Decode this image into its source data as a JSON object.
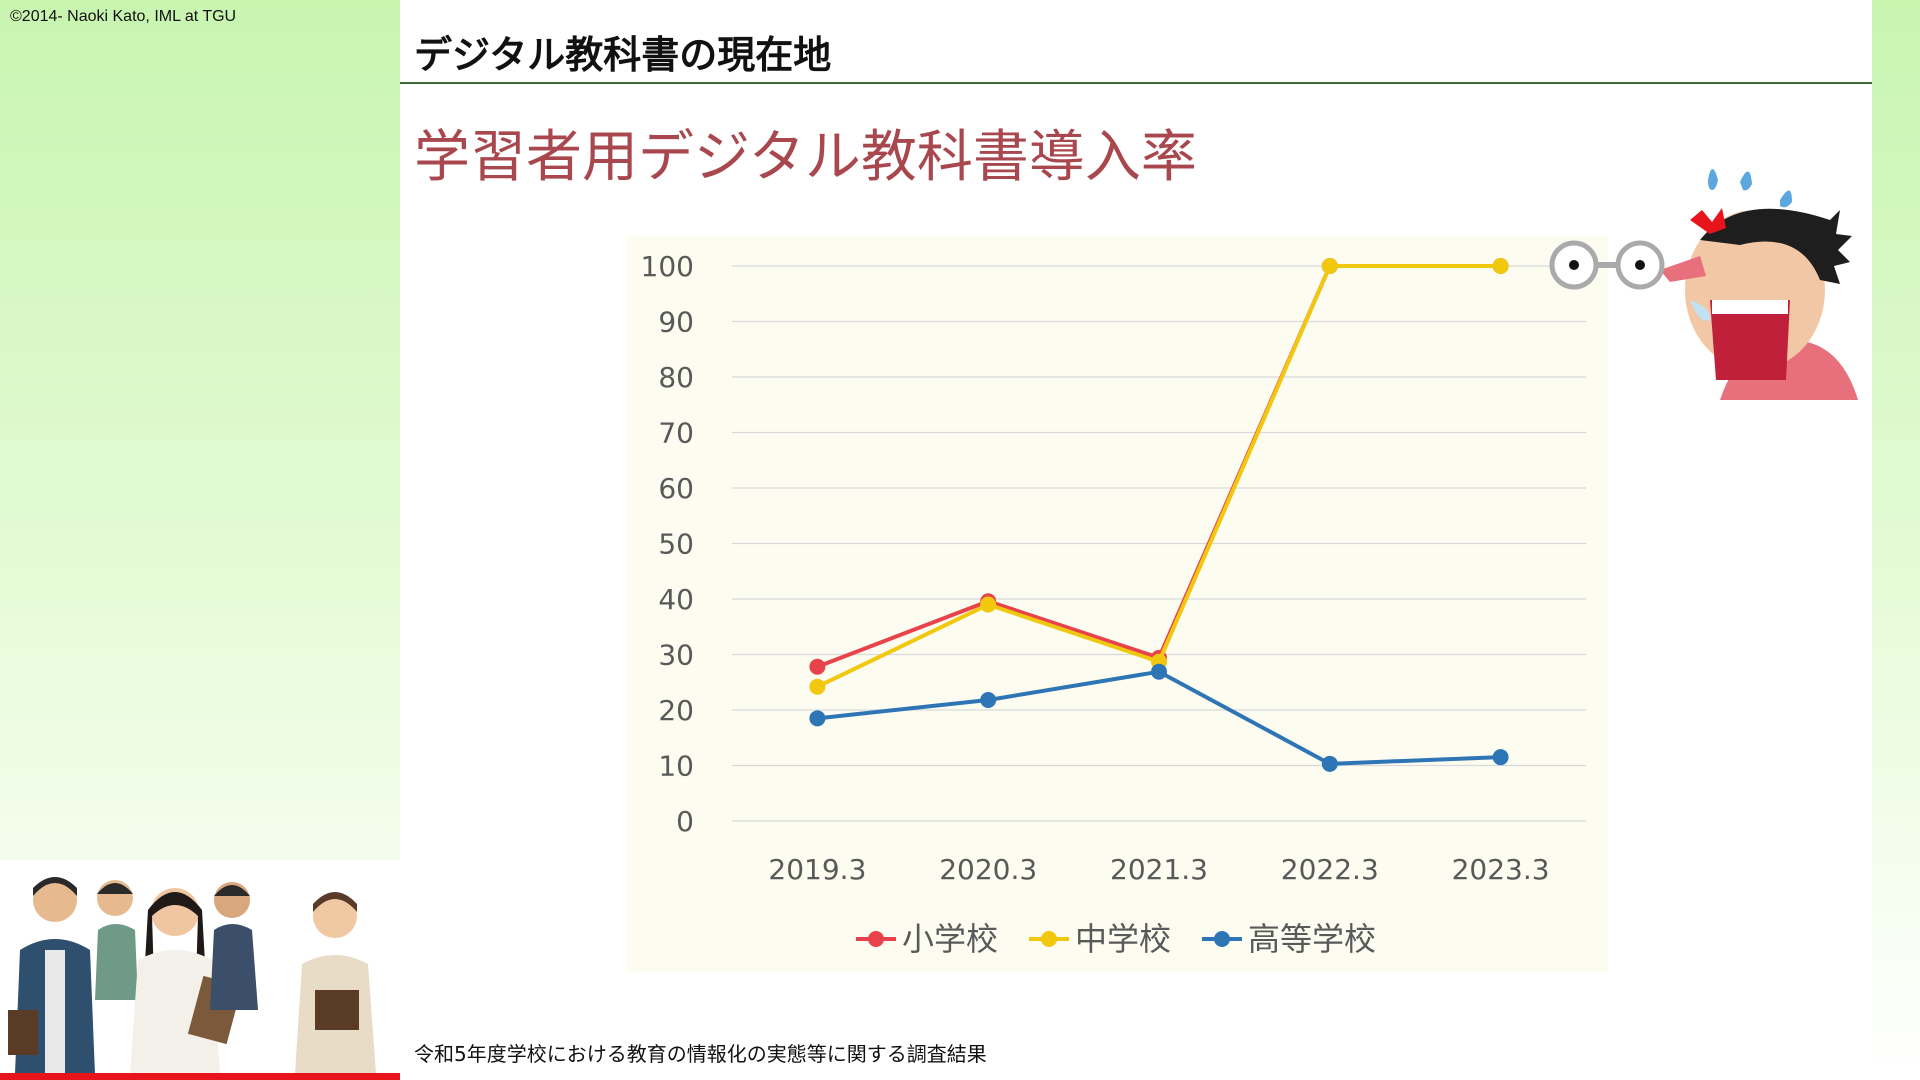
{
  "copyright": "©2014- Naoki Kato, IML at TGU",
  "header": {
    "title": "デジタル教科書の現在地"
  },
  "slide_title": "学習者用デジタル教科書導入率",
  "source_note": "令和5年度学校における教育の情報化の実態等に関する調査結果",
  "colors": {
    "accent_title": "#a8484e",
    "elementary": "#e8434a",
    "junior_high": "#f2c80f",
    "high_school": "#2e75b6"
  },
  "chart_data": {
    "type": "line",
    "title": "学習者用デジタル教科書導入率",
    "xlabel": "",
    "ylabel": "",
    "categories": [
      "2019.3",
      "2020.3",
      "2021.3",
      "2022.3",
      "2023.3"
    ],
    "ylim": [
      0,
      100
    ],
    "yticks": [
      0,
      10,
      20,
      30,
      40,
      50,
      60,
      70,
      80,
      90,
      100
    ],
    "grid": true,
    "legend": "bottom",
    "series": [
      {
        "name": "小学校",
        "color": "#e8434a",
        "values": [
          27.8,
          39.6,
          29.4,
          100,
          100
        ]
      },
      {
        "name": "中学校",
        "color": "#f2c80f",
        "values": [
          24.2,
          39.0,
          28.7,
          100,
          100
        ]
      },
      {
        "name": "高等学校",
        "color": "#2e75b6",
        "values": [
          18.5,
          21.8,
          26.9,
          10.3,
          11.5
        ]
      }
    ]
  }
}
